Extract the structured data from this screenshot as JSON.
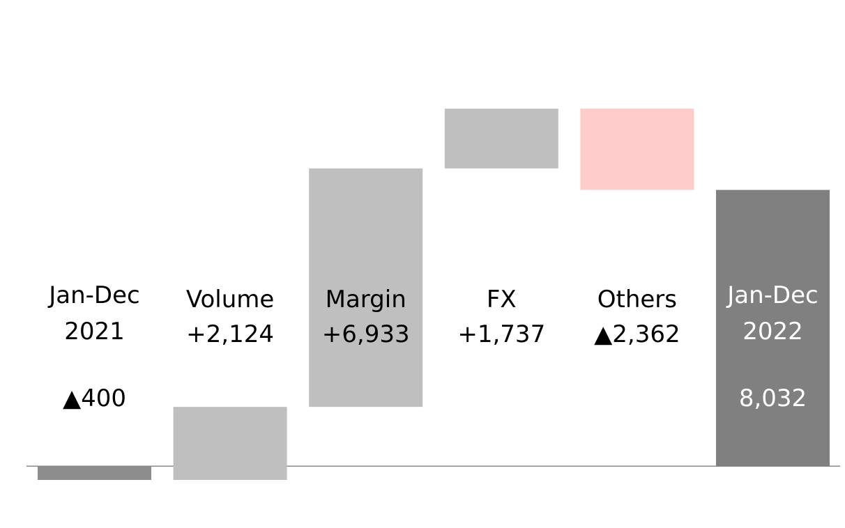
{
  "chart_data": {
    "type": "waterfall",
    "categories": [
      "Jan-Dec\n2021",
      "Volume",
      "Margin",
      "FX",
      "Others",
      "Jan-Dec\n2022"
    ],
    "measure": [
      "absolute",
      "relative",
      "relative",
      "relative",
      "relative",
      "total"
    ],
    "values": [
      -400,
      2124,
      6933,
      1737,
      -2362,
      8032
    ],
    "value_labels": [
      "▲400",
      "+2,124",
      "+6,933",
      "+1,737",
      "▲2,362",
      "8,032"
    ],
    "colors": [
      "#8c8c8c",
      "#bfbfbf",
      "#bfbfbf",
      "#bfbfbf",
      "#ffcccc",
      "#808080"
    ]
  }
}
